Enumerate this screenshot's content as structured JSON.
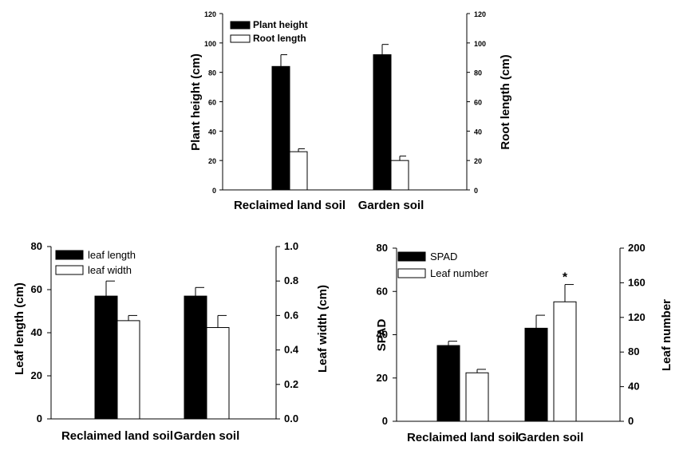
{
  "chart_data": [
    {
      "type": "bar",
      "categories": [
        "Reclaimed land soil",
        "Garden soil"
      ],
      "series": [
        {
          "name": "Plant height",
          "axis": "left",
          "color": "#000000",
          "values": [
            84,
            92
          ],
          "errors": [
            8,
            7
          ]
        },
        {
          "name": "Root length",
          "axis": "right",
          "color": "#ffffff",
          "values": [
            26,
            20
          ],
          "errors": [
            2,
            3
          ]
        }
      ],
      "ylabel_left": "Plant height (cm)",
      "ylabel_right": "Root length (cm)",
      "ylim_left": [
        0,
        120
      ],
      "ylim_right": [
        0,
        120
      ],
      "yticks_left": [
        "0",
        "20",
        "40",
        "60",
        "80",
        "100",
        "120"
      ],
      "yticks_right": [
        "0",
        "20",
        "40",
        "60",
        "80",
        "100",
        "120"
      ],
      "annotations": [],
      "legend": "top-left"
    },
    {
      "type": "bar",
      "categories": [
        "Reclaimed land soil",
        "Garden soil"
      ],
      "series": [
        {
          "name": "leaf length",
          "axis": "left",
          "color": "#000000",
          "values": [
            57,
            57
          ],
          "errors": [
            7,
            4
          ]
        },
        {
          "name": "leaf width",
          "axis": "right",
          "color": "#ffffff",
          "values": [
            0.57,
            0.53
          ],
          "errors": [
            0.03,
            0.07
          ]
        }
      ],
      "ylabel_left": "Leaf length (cm)",
      "ylabel_right": "Leaf width (cm)",
      "ylim_left": [
        0,
        80
      ],
      "ylim_right": [
        0,
        1.0
      ],
      "yticks_left": [
        "0",
        "20",
        "40",
        "60",
        "80"
      ],
      "yticks_right": [
        "0.0",
        "0.2",
        "0.4",
        "0.6",
        "0.8",
        "1.0"
      ],
      "annotations": [],
      "legend": "top-left"
    },
    {
      "type": "bar",
      "categories": [
        "Reclaimed land soil",
        "Garden soil"
      ],
      "series": [
        {
          "name": "SPAD",
          "axis": "left",
          "color": "#000000",
          "values": [
            35,
            43
          ],
          "errors": [
            2,
            6
          ]
        },
        {
          "name": "Leaf number",
          "axis": "right",
          "color": "#ffffff",
          "values": [
            56,
            138
          ],
          "errors": [
            4,
            20
          ]
        }
      ],
      "ylabel_left": "SPAD",
      "ylabel_right": "Leaf number",
      "ylim_left": [
        0,
        80
      ],
      "ylim_right": [
        0,
        200
      ],
      "yticks_left": [
        "0",
        "20",
        "40",
        "60",
        "80"
      ],
      "yticks_right": [
        "0",
        "40",
        "80",
        "120",
        "160",
        "200"
      ],
      "annotations": [
        {
          "series": 1,
          "category": 1,
          "text": "*"
        }
      ],
      "legend": "top-left"
    }
  ]
}
